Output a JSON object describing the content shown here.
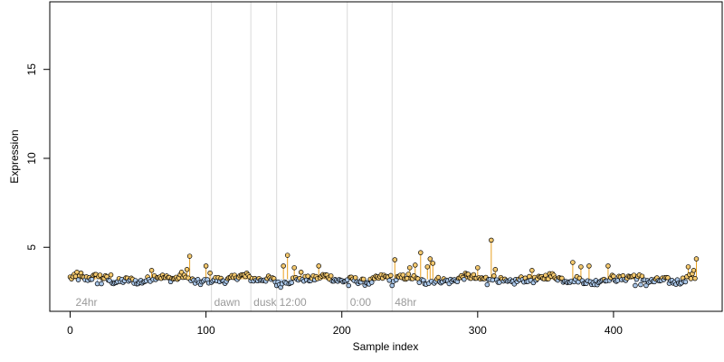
{
  "chart_data": {
    "type": "scatter",
    "title": "",
    "xlabel": "Sample index",
    "ylabel": "Expression",
    "xlim": [
      -15,
      480
    ],
    "ylim": [
      1.4,
      18.8
    ],
    "x_ticks": [
      0,
      100,
      200,
      300,
      400
    ],
    "y_ticks": [
      5,
      10,
      15
    ],
    "grid": false,
    "legend": "none",
    "baseline": 3.2,
    "colors": {
      "points_above": "#f5c96e",
      "points_below": "#a9c6e8",
      "stems_above": "#e8a020",
      "stems_below": "#8fb3de",
      "point_outline": "#000000",
      "event_lines": "#d9d9d9",
      "event_text": "#9a9a9a"
    },
    "event_markers": [
      {
        "x": 2,
        "label": "24hr",
        "line": false
      },
      {
        "x": 104,
        "label": "dawn",
        "line": true
      },
      {
        "x": 133,
        "label": "dusk",
        "line": true
      },
      {
        "x": 152,
        "label": "12:00",
        "line": true
      },
      {
        "x": 204,
        "label": "0:00",
        "line": true
      },
      {
        "x": 237,
        "label": "48hr",
        "line": true
      }
    ],
    "series": [
      {
        "n_points": 462,
        "spikes": [
          [
            5,
            3.6
          ],
          [
            8,
            3.55
          ],
          [
            30,
            3.45
          ],
          [
            60,
            3.7
          ],
          [
            82,
            3.6
          ],
          [
            86,
            3.75
          ],
          [
            88,
            4.5
          ],
          [
            100,
            3.95
          ],
          [
            103,
            3.55
          ],
          [
            130,
            3.55
          ],
          [
            157,
            3.95
          ],
          [
            160,
            4.55
          ],
          [
            165,
            3.85
          ],
          [
            170,
            3.6
          ],
          [
            183,
            3.95
          ],
          [
            237,
            4.75
          ],
          [
            239,
            4.3
          ],
          [
            250,
            3.85
          ],
          [
            254,
            4.0
          ],
          [
            258,
            4.7
          ],
          [
            263,
            3.9
          ],
          [
            265,
            4.35
          ],
          [
            267,
            4.1
          ],
          [
            300,
            3.85
          ],
          [
            310,
            5.4
          ],
          [
            313,
            3.75
          ],
          [
            340,
            3.7
          ],
          [
            370,
            4.15
          ],
          [
            376,
            3.9
          ],
          [
            382,
            3.95
          ],
          [
            386,
            4.1
          ],
          [
            396,
            3.95
          ],
          [
            455,
            3.9
          ],
          [
            459,
            3.7
          ],
          [
            461,
            4.35
          ]
        ],
        "dips": [
          [
            20,
            2.95
          ],
          [
            23,
            2.95
          ],
          [
            50,
            2.95
          ],
          [
            152,
            2.85
          ],
          [
            155,
            2.75
          ],
          [
            205,
            2.85
          ],
          [
            237,
            2.85
          ],
          [
            307,
            2.9
          ],
          [
            386,
            2.9
          ],
          [
            416,
            2.85
          ],
          [
            420,
            2.9
          ],
          [
            424,
            2.85
          ]
        ]
      }
    ]
  }
}
